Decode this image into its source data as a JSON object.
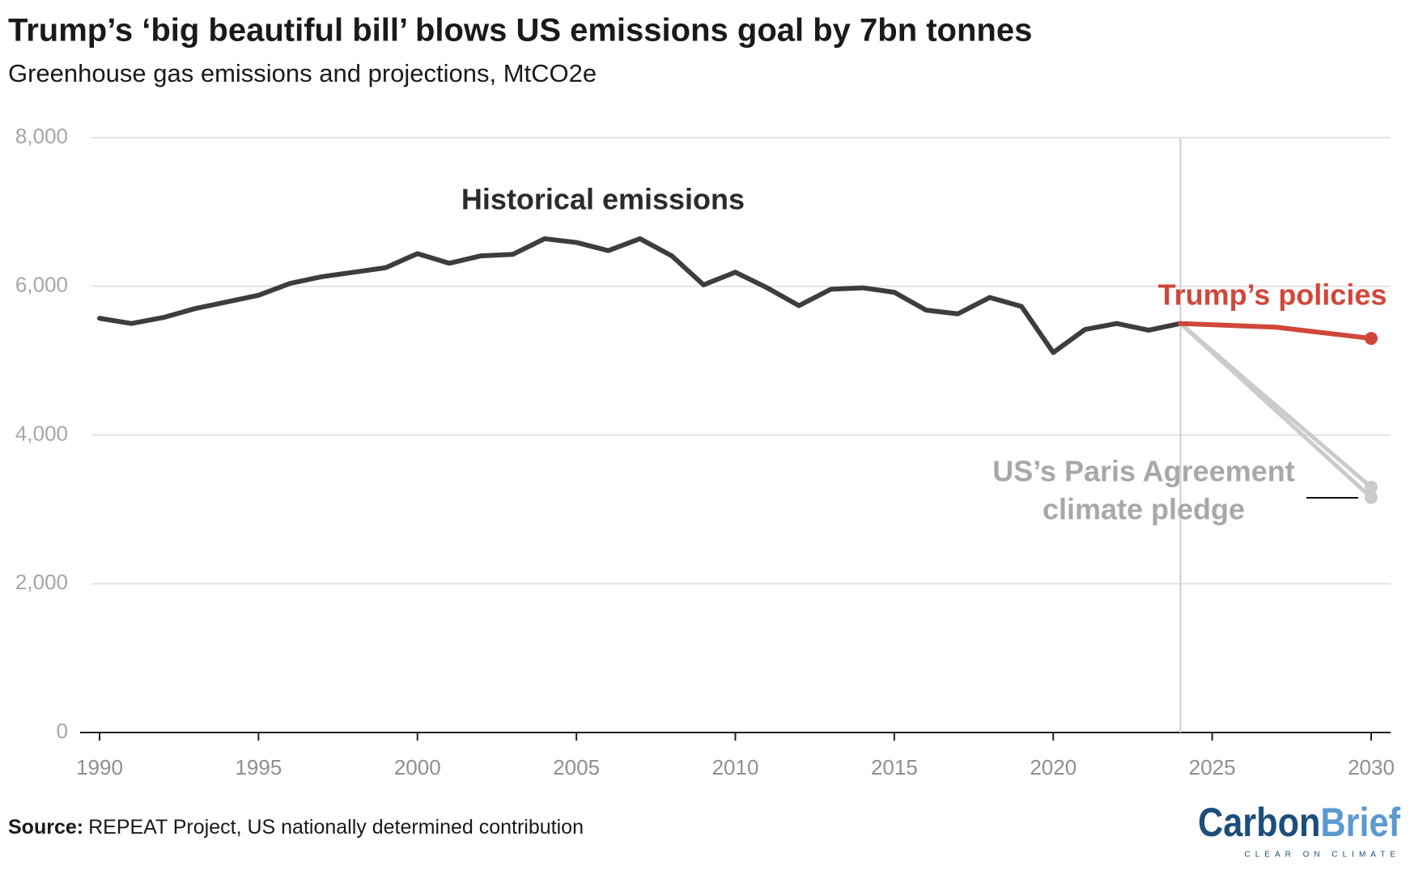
{
  "chart_data": {
    "type": "line",
    "title": "Trump’s ‘big beautiful bill’ blows US emissions goal by 7bn tonnes",
    "subtitle": "Greenhouse gas emissions and projections, MtCO2e",
    "xlim": [
      1990,
      2030
    ],
    "xticks": [
      1990,
      1995,
      2000,
      2005,
      2010,
      2015,
      2020,
      2025,
      2030
    ],
    "ylim": [
      0,
      8000
    ],
    "yticks": [
      0,
      {
        "value": 2000,
        "label": "2,000"
      },
      {
        "value": 4000,
        "label": "4,000"
      },
      {
        "value": 6000,
        "label": "6,000"
      },
      {
        "value": 8000,
        "label": "8,000"
      }
    ],
    "grid": true,
    "marker_line_x": 2024,
    "series": [
      {
        "name": "Historical emissions",
        "color": "#3d3d3d",
        "x": [
          1990,
          1991,
          1992,
          1993,
          1994,
          1995,
          1996,
          1997,
          1998,
          1999,
          2000,
          2001,
          2002,
          2003,
          2004,
          2005,
          2006,
          2007,
          2008,
          2009,
          2010,
          2011,
          2012,
          2013,
          2014,
          2015,
          2016,
          2017,
          2018,
          2019,
          2020,
          2021,
          2022,
          2023,
          2024
        ],
        "values": [
          5570,
          5500,
          5580,
          5700,
          5790,
          5880,
          6040,
          6130,
          6190,
          6250,
          6440,
          6310,
          6410,
          6430,
          6640,
          6590,
          6480,
          6640,
          6410,
          6020,
          6190,
          5980,
          5740,
          5960,
          5980,
          5920,
          5680,
          5630,
          5850,
          5730,
          5110,
          5420,
          5500,
          5410,
          5500
        ]
      },
      {
        "name": "Trump’s policies",
        "color": "#d0473a",
        "x": [
          2024,
          2027,
          2030
        ],
        "values": [
          5500,
          5450,
          5300
        ]
      },
      {
        "name": [
          "US’s Paris Agreement",
          "climate pledge"
        ],
        "color": "#c9cbcd",
        "x": [
          2024,
          2030
        ],
        "values": [
          5500,
          3300
        ],
        "low_values": [
          5500,
          3160
        ]
      }
    ],
    "source_label": "Source:",
    "source": "REPEAT Project, US nationally determined contribution",
    "logo": {
      "carbon": "Carbon",
      "brief": "Brief",
      "tagline": "CLEAR ON CLIMATE"
    }
  }
}
